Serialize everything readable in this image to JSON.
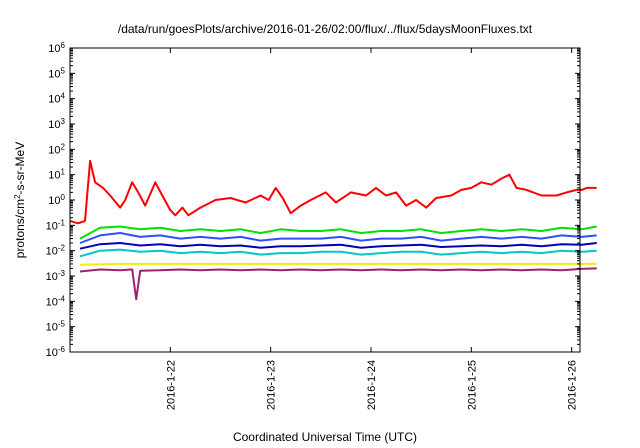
{
  "chart_data": {
    "type": "line",
    "title": "/data/run/goesPlots/archive/2016-01-26/02:00/flux/../flux/5daysMoonFluxes.txt",
    "xlabel": "Coordinated Universal Time (UTC)",
    "ylabel": {
      "pre": "protons/cm",
      "sup": "2",
      "post": "-s-sr-MeV"
    },
    "y_scale": "log",
    "ylim": [
      1e-06,
      1000000.0
    ],
    "y_ticks": [
      {
        "exp": -6,
        "base": "10",
        "sup": "-6"
      },
      {
        "exp": -5,
        "base": "10",
        "sup": "-5"
      },
      {
        "exp": -4,
        "base": "10",
        "sup": "-4"
      },
      {
        "exp": -3,
        "base": "10",
        "sup": "-3"
      },
      {
        "exp": -2,
        "base": "10",
        "sup": "-2"
      },
      {
        "exp": -1,
        "base": "10",
        "sup": "-1"
      },
      {
        "exp": 0,
        "base": "10",
        "sup": "0"
      },
      {
        "exp": 1,
        "base": "10",
        "sup": "1"
      },
      {
        "exp": 2,
        "base": "10",
        "sup": "2"
      },
      {
        "exp": 3,
        "base": "10",
        "sup": "3"
      },
      {
        "exp": 4,
        "base": "10",
        "sup": "4"
      },
      {
        "exp": 5,
        "base": "10",
        "sup": "5"
      },
      {
        "exp": 6,
        "base": "10",
        "sup": "6"
      }
    ],
    "x_range_days": [
      "2016-01-21T00:00",
      "2016-01-26T02:00"
    ],
    "x_ticks": [
      "2016-1-22",
      "2016-1-23",
      "2016-1-24",
      "2016-1-25",
      "2016-1-26"
    ],
    "grid": false,
    "legend": "none",
    "series": [
      {
        "color": "#ff0000",
        "points": [
          [
            0.0,
            0.15
          ],
          [
            0.08,
            0.12
          ],
          [
            0.15,
            0.15
          ],
          [
            0.2,
            35
          ],
          [
            0.25,
            5
          ],
          [
            0.33,
            3
          ],
          [
            0.4,
            1.5
          ],
          [
            0.5,
            0.5
          ],
          [
            0.55,
            1.0
          ],
          [
            0.62,
            5
          ],
          [
            0.68,
            2
          ],
          [
            0.75,
            0.6
          ],
          [
            0.85,
            5
          ],
          [
            0.92,
            1.5
          ],
          [
            1.0,
            0.4
          ],
          [
            1.05,
            0.25
          ],
          [
            1.12,
            0.5
          ],
          [
            1.18,
            0.25
          ],
          [
            1.3,
            0.5
          ],
          [
            1.45,
            1.0
          ],
          [
            1.6,
            1.2
          ],
          [
            1.75,
            0.8
          ],
          [
            1.9,
            1.5
          ],
          [
            1.98,
            1.0
          ],
          [
            2.05,
            3
          ],
          [
            2.12,
            1.2
          ],
          [
            2.2,
            0.3
          ],
          [
            2.3,
            0.6
          ],
          [
            2.4,
            1.0
          ],
          [
            2.55,
            2.0
          ],
          [
            2.65,
            0.8
          ],
          [
            2.8,
            2.0
          ],
          [
            2.95,
            1.5
          ],
          [
            3.05,
            3
          ],
          [
            3.15,
            1.5
          ],
          [
            3.25,
            2.0
          ],
          [
            3.35,
            0.6
          ],
          [
            3.45,
            1.0
          ],
          [
            3.55,
            0.5
          ],
          [
            3.65,
            1.2
          ],
          [
            3.8,
            1.5
          ],
          [
            3.9,
            2.5
          ],
          [
            4.0,
            3
          ],
          [
            4.1,
            5
          ],
          [
            4.2,
            4
          ],
          [
            4.3,
            7
          ],
          [
            4.38,
            10
          ],
          [
            4.45,
            3
          ],
          [
            4.55,
            2.5
          ],
          [
            4.7,
            1.5
          ],
          [
            4.85,
            1.5
          ],
          [
            4.95,
            2.0
          ],
          [
            5.05,
            2.5
          ],
          [
            5.1,
            2.5
          ],
          [
            5.15,
            3
          ],
          [
            5.25,
            3
          ]
        ]
      },
      {
        "color": "#00e000",
        "points": [
          [
            0.1,
            0.03
          ],
          [
            0.3,
            0.08
          ],
          [
            0.5,
            0.09
          ],
          [
            0.7,
            0.07
          ],
          [
            0.9,
            0.08
          ],
          [
            1.1,
            0.06
          ],
          [
            1.3,
            0.07
          ],
          [
            1.5,
            0.06
          ],
          [
            1.7,
            0.07
          ],
          [
            1.9,
            0.05
          ],
          [
            2.1,
            0.07
          ],
          [
            2.3,
            0.06
          ],
          [
            2.5,
            0.06
          ],
          [
            2.7,
            0.07
          ],
          [
            2.9,
            0.05
          ],
          [
            3.1,
            0.06
          ],
          [
            3.3,
            0.06
          ],
          [
            3.5,
            0.07
          ],
          [
            3.7,
            0.05
          ],
          [
            3.9,
            0.06
          ],
          [
            4.1,
            0.07
          ],
          [
            4.3,
            0.06
          ],
          [
            4.5,
            0.07
          ],
          [
            4.7,
            0.06
          ],
          [
            4.9,
            0.08
          ],
          [
            5.1,
            0.07
          ],
          [
            5.25,
            0.09
          ]
        ]
      },
      {
        "color": "#2f4fff",
        "points": [
          [
            0.1,
            0.02
          ],
          [
            0.3,
            0.04
          ],
          [
            0.5,
            0.05
          ],
          [
            0.7,
            0.035
          ],
          [
            0.9,
            0.04
          ],
          [
            1.1,
            0.03
          ],
          [
            1.3,
            0.035
          ],
          [
            1.5,
            0.03
          ],
          [
            1.7,
            0.035
          ],
          [
            1.9,
            0.025
          ],
          [
            2.1,
            0.03
          ],
          [
            2.3,
            0.03
          ],
          [
            2.5,
            0.03
          ],
          [
            2.7,
            0.035
          ],
          [
            2.9,
            0.025
          ],
          [
            3.1,
            0.03
          ],
          [
            3.3,
            0.03
          ],
          [
            3.5,
            0.035
          ],
          [
            3.7,
            0.025
          ],
          [
            3.9,
            0.03
          ],
          [
            4.1,
            0.035
          ],
          [
            4.3,
            0.03
          ],
          [
            4.5,
            0.035
          ],
          [
            4.7,
            0.03
          ],
          [
            4.9,
            0.04
          ],
          [
            5.1,
            0.035
          ],
          [
            5.25,
            0.04
          ]
        ]
      },
      {
        "color": "#0000bb",
        "points": [
          [
            0.1,
            0.012
          ],
          [
            0.3,
            0.018
          ],
          [
            0.5,
            0.02
          ],
          [
            0.7,
            0.016
          ],
          [
            0.9,
            0.018
          ],
          [
            1.1,
            0.015
          ],
          [
            1.3,
            0.017
          ],
          [
            1.5,
            0.015
          ],
          [
            1.7,
            0.016
          ],
          [
            1.9,
            0.013
          ],
          [
            2.1,
            0.015
          ],
          [
            2.3,
            0.015
          ],
          [
            2.5,
            0.016
          ],
          [
            2.7,
            0.017
          ],
          [
            2.9,
            0.013
          ],
          [
            3.1,
            0.015
          ],
          [
            3.3,
            0.016
          ],
          [
            3.5,
            0.017
          ],
          [
            3.7,
            0.014
          ],
          [
            3.9,
            0.015
          ],
          [
            4.1,
            0.016
          ],
          [
            4.3,
            0.015
          ],
          [
            4.5,
            0.017
          ],
          [
            4.7,
            0.015
          ],
          [
            4.9,
            0.018
          ],
          [
            5.1,
            0.017
          ],
          [
            5.25,
            0.02
          ]
        ]
      },
      {
        "color": "#00c8c8",
        "points": [
          [
            0.1,
            0.006
          ],
          [
            0.3,
            0.01
          ],
          [
            0.5,
            0.011
          ],
          [
            0.7,
            0.009
          ],
          [
            0.9,
            0.01
          ],
          [
            1.1,
            0.008
          ],
          [
            1.3,
            0.009
          ],
          [
            1.5,
            0.008
          ],
          [
            1.7,
            0.009
          ],
          [
            1.9,
            0.007
          ],
          [
            2.1,
            0.008
          ],
          [
            2.3,
            0.008
          ],
          [
            2.5,
            0.009
          ],
          [
            2.7,
            0.009
          ],
          [
            2.9,
            0.007
          ],
          [
            3.1,
            0.008
          ],
          [
            3.3,
            0.009
          ],
          [
            3.5,
            0.009
          ],
          [
            3.7,
            0.007
          ],
          [
            3.9,
            0.008
          ],
          [
            4.1,
            0.009
          ],
          [
            4.3,
            0.008
          ],
          [
            4.5,
            0.009
          ],
          [
            4.7,
            0.008
          ],
          [
            4.9,
            0.01
          ],
          [
            5.1,
            0.009
          ],
          [
            5.25,
            0.01
          ]
        ]
      },
      {
        "color": "#f0f000",
        "points": [
          [
            0.1,
            0.0028
          ],
          [
            0.5,
            0.003
          ],
          [
            1.0,
            0.003
          ],
          [
            1.5,
            0.003
          ],
          [
            2.0,
            0.003
          ],
          [
            2.5,
            0.003
          ],
          [
            3.0,
            0.003
          ],
          [
            3.5,
            0.003
          ],
          [
            4.0,
            0.003
          ],
          [
            4.5,
            0.003
          ],
          [
            5.0,
            0.003
          ],
          [
            5.25,
            0.003
          ]
        ]
      },
      {
        "color": "#a0206a",
        "points": [
          [
            0.1,
            0.0015
          ],
          [
            0.3,
            0.0018
          ],
          [
            0.5,
            0.0017
          ],
          [
            0.62,
            0.0018
          ],
          [
            0.66,
            0.00012
          ],
          [
            0.7,
            0.0016
          ],
          [
            0.9,
            0.0017
          ],
          [
            1.1,
            0.0018
          ],
          [
            1.3,
            0.0017
          ],
          [
            1.5,
            0.0018
          ],
          [
            1.7,
            0.0017
          ],
          [
            1.9,
            0.0018
          ],
          [
            2.1,
            0.0017
          ],
          [
            2.3,
            0.0018
          ],
          [
            2.5,
            0.0017
          ],
          [
            2.7,
            0.0018
          ],
          [
            2.9,
            0.0017
          ],
          [
            3.1,
            0.0018
          ],
          [
            3.3,
            0.0017
          ],
          [
            3.5,
            0.0018
          ],
          [
            3.7,
            0.0017
          ],
          [
            3.9,
            0.0018
          ],
          [
            4.1,
            0.0017
          ],
          [
            4.3,
            0.0018
          ],
          [
            4.5,
            0.0017
          ],
          [
            4.7,
            0.0018
          ],
          [
            4.9,
            0.0017
          ],
          [
            5.1,
            0.0019
          ],
          [
            5.25,
            0.002
          ]
        ]
      }
    ]
  }
}
